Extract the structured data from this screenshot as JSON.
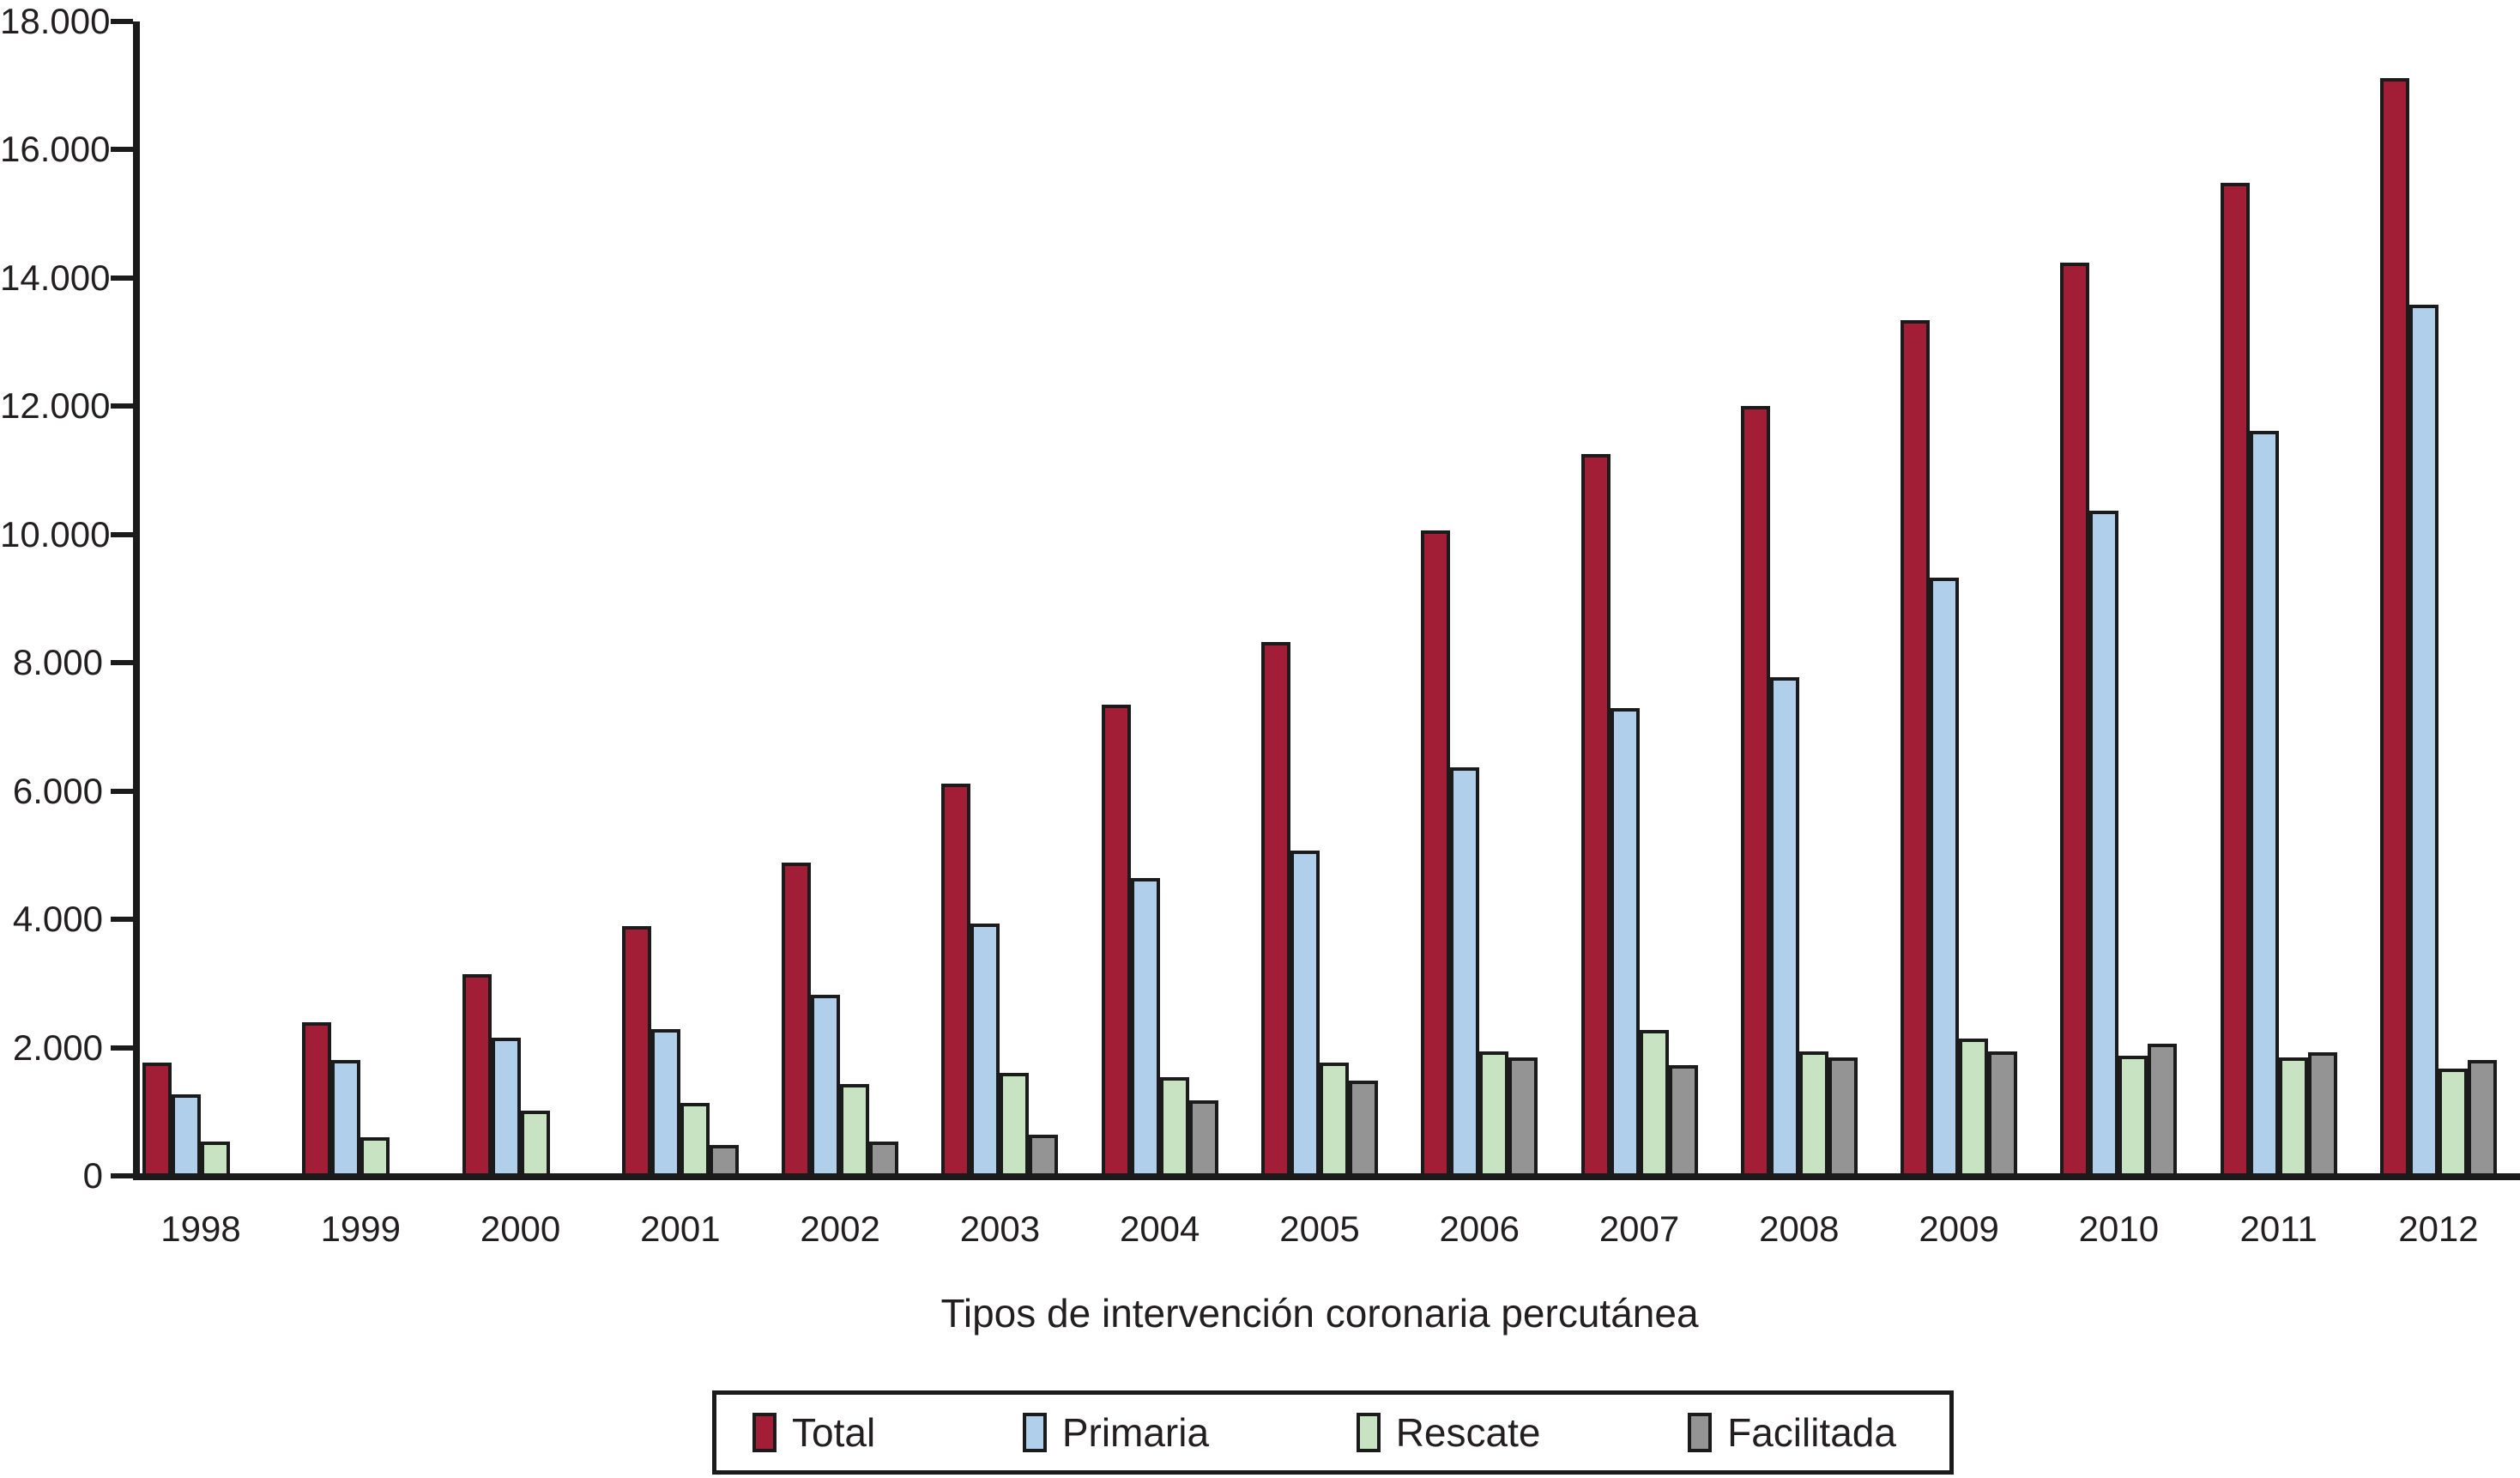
{
  "chart_data": {
    "type": "bar",
    "title": "",
    "xlabel": "Tipos de intervención coronaria percutánea",
    "ylabel": "",
    "ylim": [
      0,
      18000
    ],
    "grid": false,
    "legend_position": "bottom",
    "bar_outline_color": "#1b1b1b",
    "background_color": "#ffffff",
    "y_ticks": [
      {
        "value": 0,
        "label": "0"
      },
      {
        "value": 2000,
        "label": "2.000"
      },
      {
        "value": 4000,
        "label": "4.000"
      },
      {
        "value": 6000,
        "label": "6.000"
      },
      {
        "value": 8000,
        "label": "8.000"
      },
      {
        "value": 10000,
        "label": "10.000"
      },
      {
        "value": 12000,
        "label": "12.000"
      },
      {
        "value": 14000,
        "label": "14.000"
      },
      {
        "value": 16000,
        "label": "16.000"
      },
      {
        "value": 18000,
        "label": "18.000"
      }
    ],
    "categories": [
      "1998",
      "1999",
      "2000",
      "2001",
      "2002",
      "2003",
      "2004",
      "2005",
      "2006",
      "2007",
      "2008",
      "2009",
      "2010",
      "2011",
      "2012"
    ],
    "series": [
      {
        "name": "Total",
        "color": "#a21e37",
        "values": [
          1720,
          2350,
          3100,
          3860,
          4850,
          6070,
          7310,
          8290,
          10030,
          11210,
          11960,
          13300,
          14200,
          15450,
          17080
        ]
      },
      {
        "name": "Primaria",
        "color": "#afcfea",
        "values": [
          1230,
          1760,
          2120,
          2250,
          2780,
          3890,
          4600,
          5030,
          6330,
          7260,
          7740,
          9290,
          10330,
          11570,
          13540
        ]
      },
      {
        "name": "Rescate",
        "color": "#c7e3c2",
        "values": [
          490,
          560,
          980,
          1100,
          1390,
          1570,
          1500,
          1720,
          1900,
          2230,
          1900,
          2100,
          1840,
          1810,
          1630
        ]
      },
      {
        "name": "Facilitada",
        "color": "#949494",
        "values": [
          null,
          null,
          null,
          440,
          500,
          600,
          1140,
          1440,
          1800,
          1690,
          1800,
          1900,
          2020,
          1890,
          1770
        ]
      }
    ]
  }
}
